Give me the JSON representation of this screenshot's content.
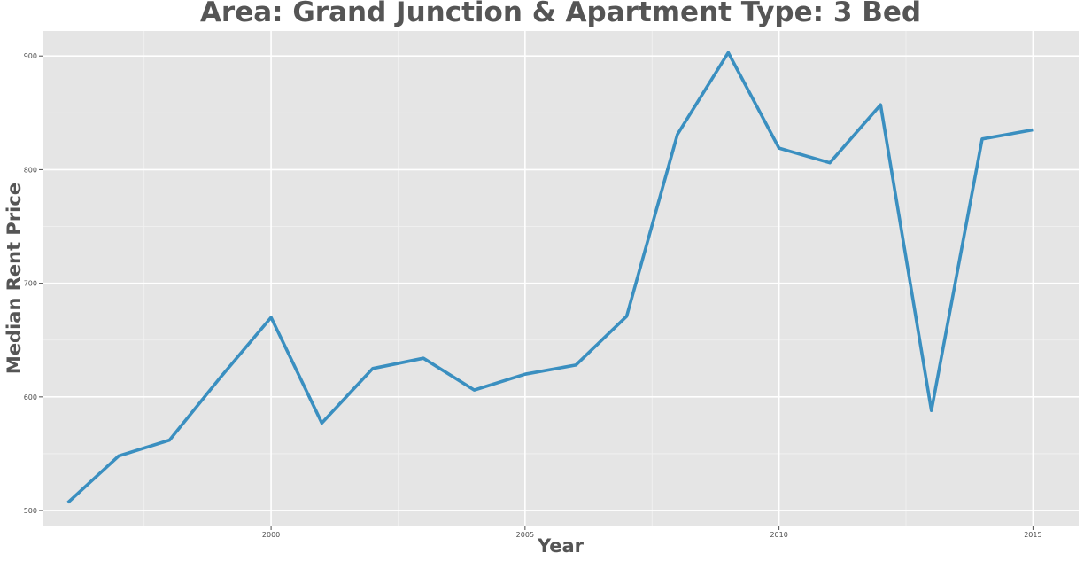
{
  "chart_data": {
    "type": "line",
    "title": "Area: Grand Junction & Apartment Type: 3 Bed",
    "xlabel": "Year",
    "ylabel": "Median Rent Price",
    "xlim": [
      1995.5,
      2015.9
    ],
    "ylim": [
      486,
      922
    ],
    "x_ticks": [
      2000,
      2005,
      2010,
      2015
    ],
    "y_ticks": [
      500,
      600,
      700,
      800,
      900
    ],
    "grid": true,
    "series": [
      {
        "color": "#3a8fc0",
        "x": [
          1996,
          1997,
          1998,
          1999,
          2000,
          2001,
          2002,
          2003,
          2004,
          2005,
          2006,
          2007,
          2008,
          2009,
          2010,
          2011,
          2012,
          2013,
          2014,
          2015
        ],
        "y": [
          507,
          548,
          562,
          617,
          670,
          577,
          625,
          634,
          606,
          620,
          628,
          671,
          831,
          903,
          819,
          806,
          857,
          588,
          827,
          835
        ]
      }
    ]
  }
}
